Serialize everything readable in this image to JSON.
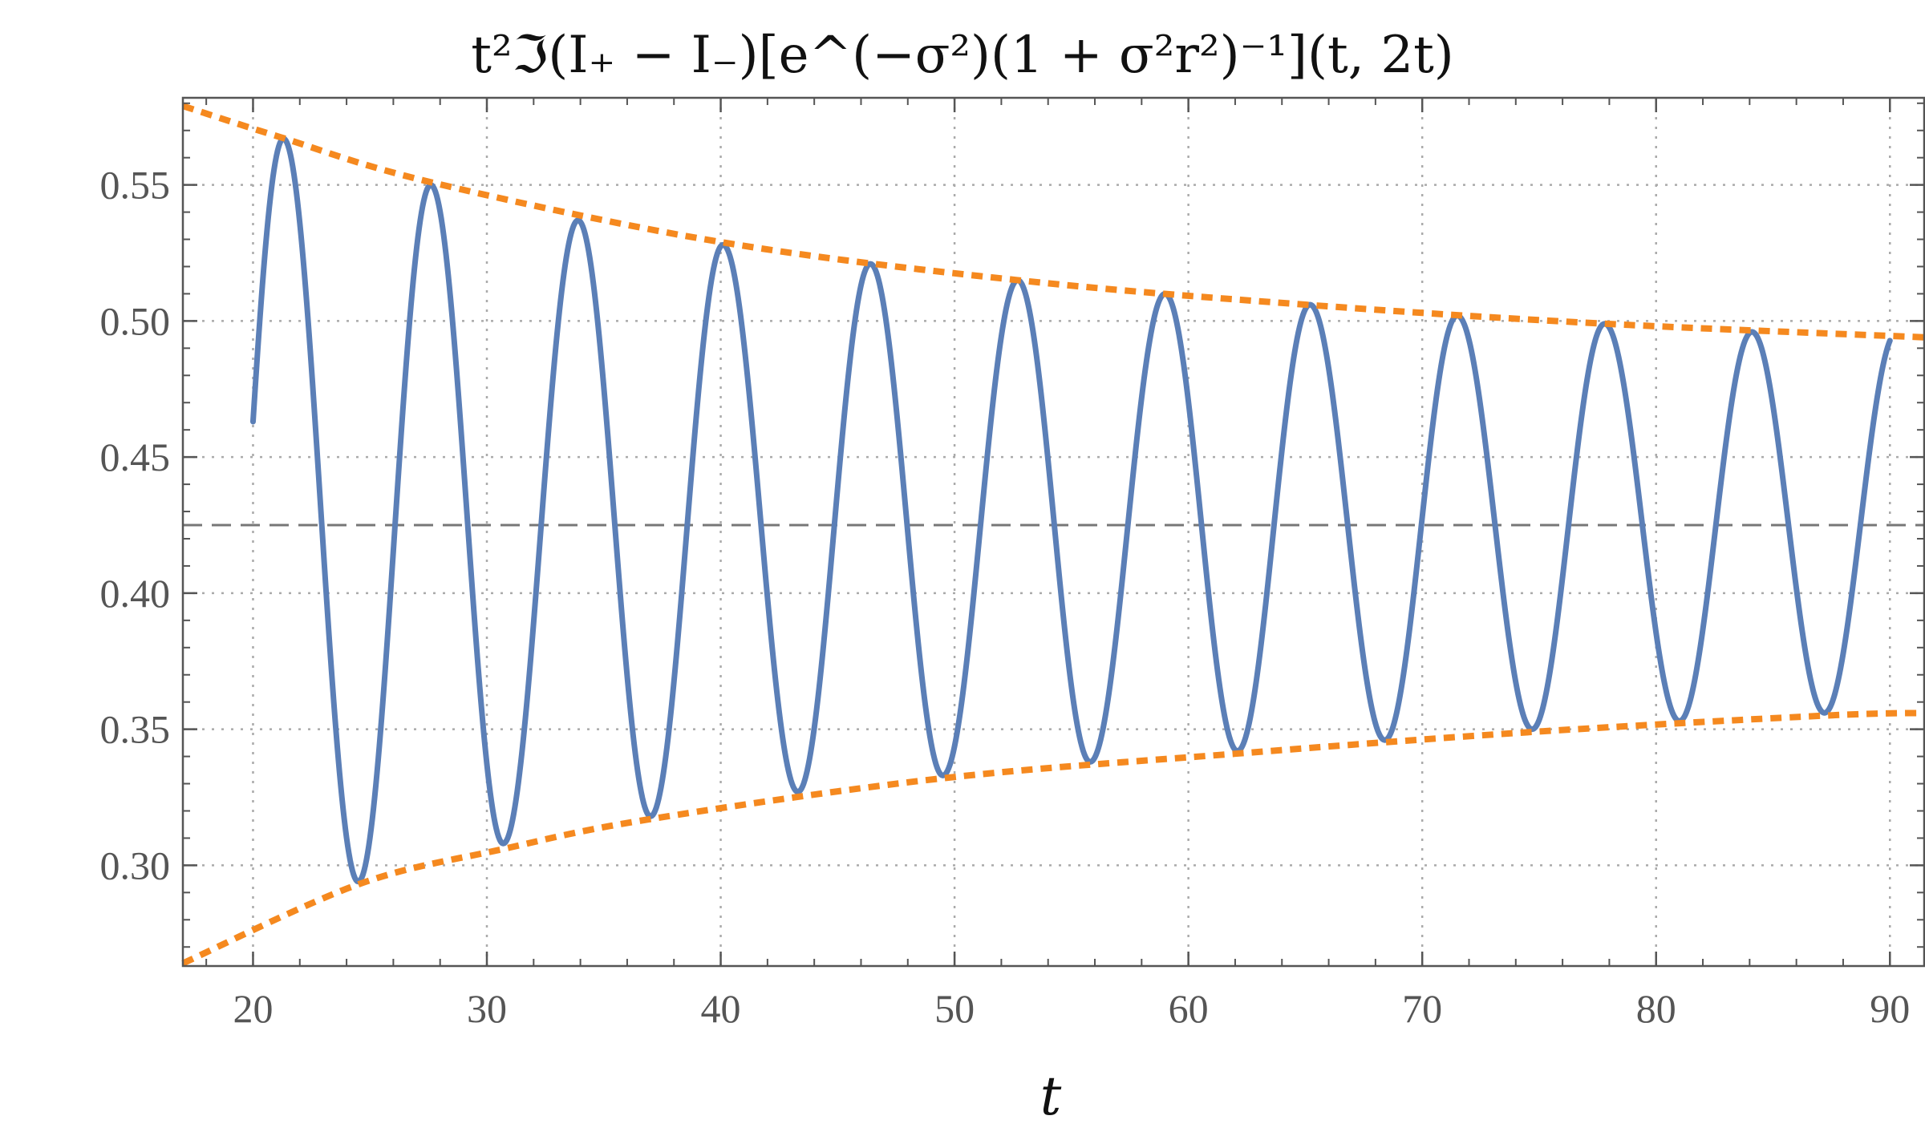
{
  "chart_data": {
    "type": "line",
    "title": "t²ℑ(I₊ − I₋)[e^(−σ²)(1 + σ²r²)⁻¹](t, 2t)",
    "xlabel": "t",
    "ylabel": "",
    "xlim": [
      17,
      91.5
    ],
    "ylim": [
      0.263,
      0.582
    ],
    "x_ticks": [
      20,
      30,
      40,
      50,
      60,
      70,
      80,
      90
    ],
    "x_tick_labels": [
      "20",
      "30",
      "40",
      "50",
      "60",
      "70",
      "80",
      "90"
    ],
    "y_ticks": [
      0.3,
      0.35,
      0.4,
      0.45,
      0.5,
      0.55
    ],
    "y_tick_labels": [
      "0.30",
      "0.35",
      "0.40",
      "0.45",
      "0.50",
      "0.55"
    ],
    "grid": true,
    "reference_line_y": 0.425,
    "colors": {
      "series": "#5b7fb7",
      "envelope": "#f5891f",
      "reference": "#777777",
      "grid": "#aaaaaa",
      "axis": "#555555"
    },
    "series": [
      {
        "style": "solid",
        "x_range": [
          20,
          90
        ],
        "start_value": 0.463,
        "end_value": 0.487,
        "maxima": [
          {
            "x": 21.3,
            "y": 0.567
          },
          {
            "x": 27.6,
            "y": 0.55
          },
          {
            "x": 33.9,
            "y": 0.537
          },
          {
            "x": 40.1,
            "y": 0.528
          },
          {
            "x": 46.4,
            "y": 0.521
          },
          {
            "x": 52.7,
            "y": 0.515
          },
          {
            "x": 59.0,
            "y": 0.51
          },
          {
            "x": 65.2,
            "y": 0.506
          },
          {
            "x": 71.5,
            "y": 0.502
          },
          {
            "x": 77.8,
            "y": 0.499
          },
          {
            "x": 84.1,
            "y": 0.496
          }
        ],
        "minima": [
          {
            "x": 24.5,
            "y": 0.294
          },
          {
            "x": 30.7,
            "y": 0.308
          },
          {
            "x": 37.0,
            "y": 0.318
          },
          {
            "x": 43.3,
            "y": 0.327
          },
          {
            "x": 49.5,
            "y": 0.333
          },
          {
            "x": 55.8,
            "y": 0.338
          },
          {
            "x": 62.1,
            "y": 0.342
          },
          {
            "x": 68.4,
            "y": 0.346
          },
          {
            "x": 74.7,
            "y": 0.35
          },
          {
            "x": 81.0,
            "y": 0.353
          },
          {
            "x": 87.2,
            "y": 0.356
          }
        ]
      },
      {
        "style": "dotted",
        "x": [
          17,
          21,
          27.6,
          40,
          52.7,
          65,
          77.8,
          91.5
        ],
        "values": [
          0.579,
          0.568,
          0.551,
          0.529,
          0.515,
          0.506,
          0.499,
          0.494
        ]
      },
      {
        "style": "dotted",
        "x": [
          17,
          24.5,
          30.7,
          37,
          49.5,
          62,
          74.7,
          87.2,
          91.5
        ],
        "values": [
          0.264,
          0.293,
          0.306,
          0.317,
          0.332,
          0.341,
          0.349,
          0.355,
          0.356
        ]
      }
    ]
  }
}
